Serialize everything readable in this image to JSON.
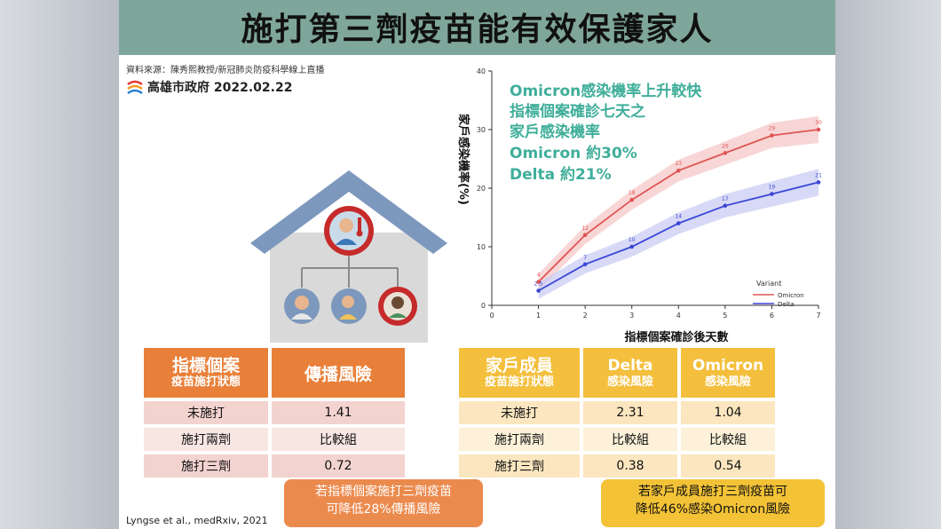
{
  "slide": {
    "title": "施打第三劑疫苗能有效保護家人",
    "source": "資料來源：陳秀熙教授/新冠肺炎防疫科學線上直播",
    "gov": "高雄市政府 2022.02.22",
    "citation": "Lyngse et al., medRxiv, 2021"
  },
  "table_index": {
    "header_main": "指標個案",
    "header_sub": "疫苗施打狀態",
    "header_risk": "傳播風險",
    "rows": [
      {
        "label": "未施打",
        "value": "1.41"
      },
      {
        "label": "施打兩劑",
        "value": "比較組"
      },
      {
        "label": "施打三劑",
        "value": "0.72"
      }
    ],
    "note_line1": "若指標個案施打三劑疫苗",
    "note_line2": "可降低28%傳播風險"
  },
  "table_household": {
    "header_main": "家戶成員",
    "header_sub": "疫苗施打狀態",
    "col_delta": "Delta",
    "col_omicron": "Omicron",
    "col_sub": "感染風險",
    "rows": [
      {
        "label": "未施打",
        "delta": "2.31",
        "omicron": "1.04"
      },
      {
        "label": "施打兩劑",
        "delta": "比較組",
        "omicron": "比較組"
      },
      {
        "label": "施打三劑",
        "delta": "0.38",
        "omicron": "0.54"
      }
    ],
    "note_line1": "若家戶成員施打三劑疫苗可",
    "note_line2": "降低46%感染Omicron風險"
  },
  "chart_data": {
    "type": "line",
    "x": [
      1,
      2,
      3,
      4,
      5,
      6,
      7
    ],
    "series": [
      {
        "name": "Omicron",
        "values": [
          4,
          12,
          18,
          23,
          26,
          29,
          30
        ],
        "color": "#e05555"
      },
      {
        "name": "Delta",
        "values": [
          2.5,
          7,
          10,
          14,
          17,
          19,
          21
        ],
        "color": "#3b47d6"
      }
    ],
    "xlabel": "指標個案確診後天數",
    "ylabel": "家戶感染機率(%)",
    "xlim": [
      0,
      7
    ],
    "ylim": [
      0,
      40
    ],
    "xticks": [
      "0",
      "1",
      "2",
      "3",
      "4",
      "5",
      "6",
      "7"
    ],
    "yticks": [
      "0",
      "10",
      "20",
      "30",
      "40"
    ],
    "legend_title": "Variant",
    "legend_position": "bottom-right",
    "annotation": {
      "line1": "Omicron感染機率上升較快",
      "line2": "指標個案確診七天之",
      "line3": "家戶感染機率",
      "line4": "Omicron 約30%",
      "line5": "Delta 約21%"
    }
  }
}
